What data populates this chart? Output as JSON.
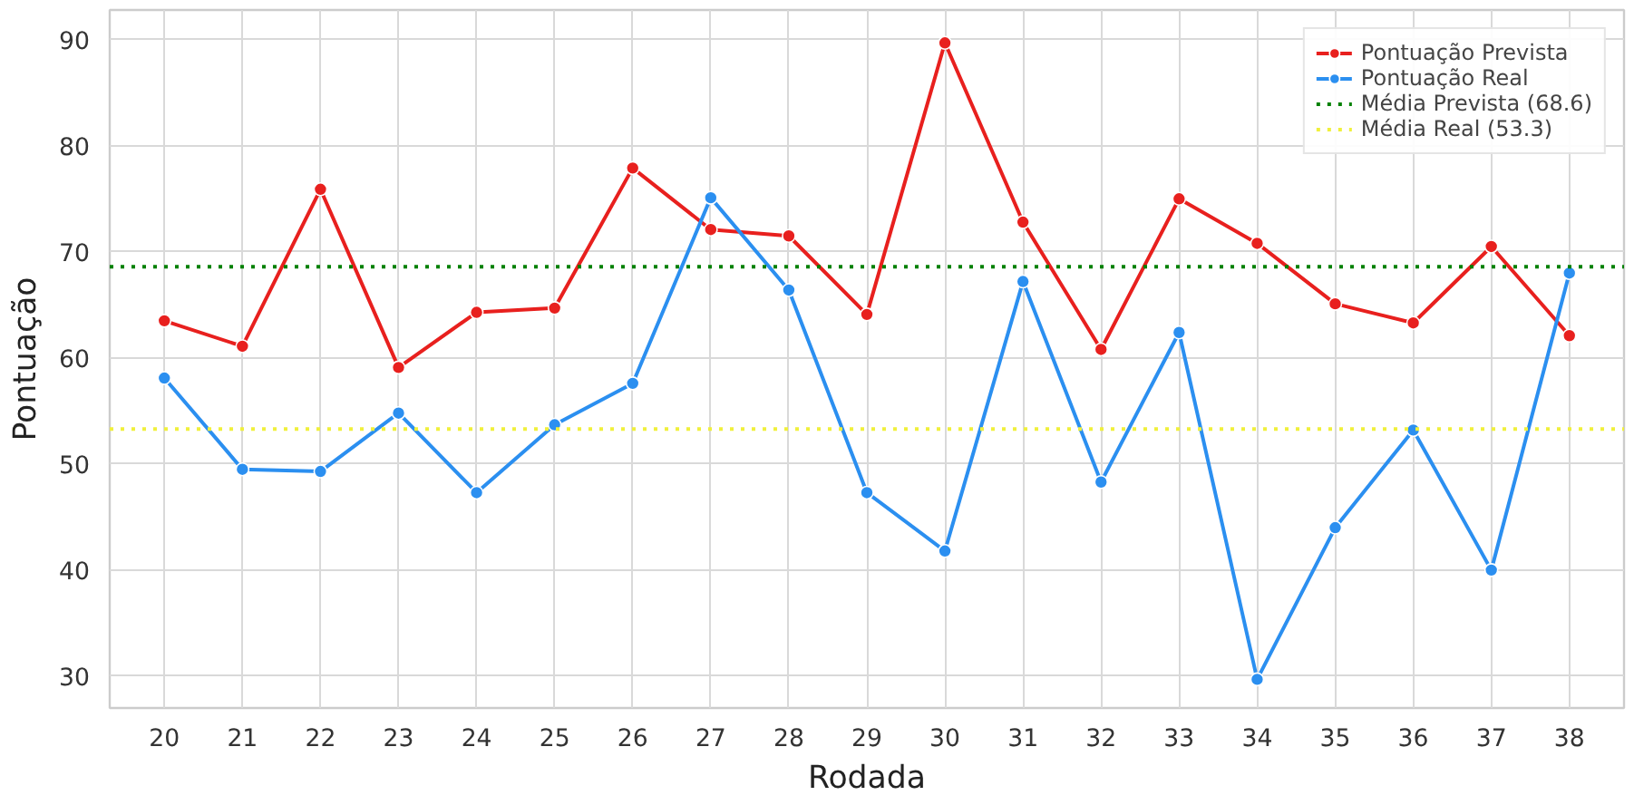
{
  "chart_data": {
    "type": "line",
    "xlabel": "Rodada",
    "ylabel": "Pontuação",
    "categories": [
      "20",
      "21",
      "22",
      "23",
      "24",
      "25",
      "26",
      "27",
      "28",
      "29",
      "30",
      "31",
      "32",
      "33",
      "34",
      "35",
      "36",
      "37",
      "38"
    ],
    "series": [
      {
        "name": "Pontuação Prevista",
        "color": "#e8201e",
        "values": [
          63.5,
          61.1,
          75.9,
          59.1,
          64.3,
          64.7,
          77.9,
          72.1,
          71.5,
          64.1,
          89.7,
          72.8,
          60.8,
          75.0,
          70.8,
          65.1,
          63.3,
          70.5,
          62.1
        ]
      },
      {
        "name": "Pontuação Real",
        "color": "#2b8ff0",
        "values": [
          58.1,
          49.5,
          49.3,
          54.8,
          47.3,
          53.7,
          57.6,
          75.1,
          66.4,
          47.3,
          41.8,
          67.2,
          48.3,
          62.4,
          29.7,
          44.0,
          53.2,
          40.0,
          68.0
        ]
      }
    ],
    "ref_lines": [
      {
        "axis": "y",
        "value": 68.6,
        "label": "Média Prevista (68.6)",
        "color": "#008000",
        "line_style": "dotted"
      },
      {
        "axis": "y",
        "value": 53.3,
        "label": "Média Real (53.3)",
        "color": "#f0f03c",
        "line_style": "dotted"
      }
    ],
    "ylim": [
      27,
      92.8
    ],
    "yticks": [
      30,
      40,
      50,
      60,
      70,
      80,
      90
    ],
    "grid": true,
    "legend": "top right",
    "marker": "circle",
    "line_style": "solid"
  }
}
